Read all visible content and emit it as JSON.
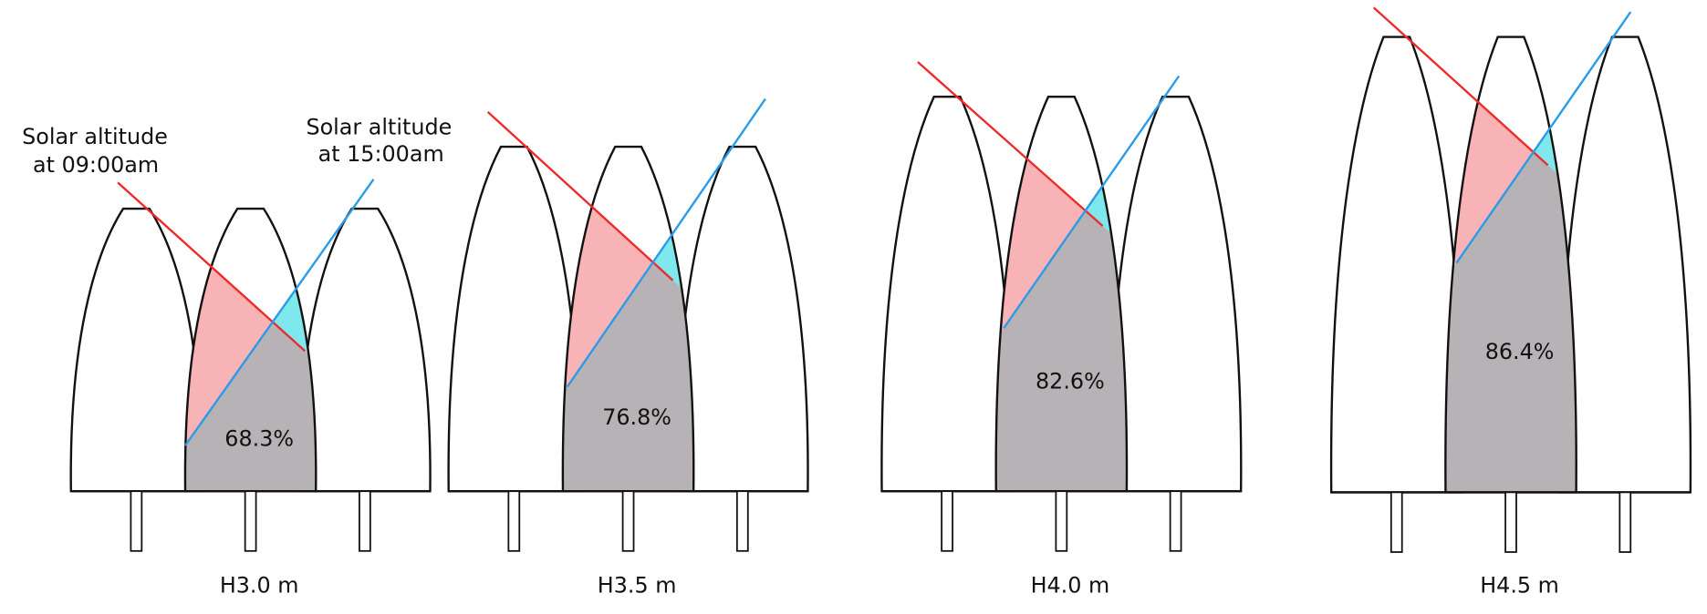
{
  "annotations": [
    [
      "Solar altitude",
      "at 09:00am"
    ],
    [
      "Solar altitude",
      "at 15:00am"
    ]
  ],
  "scenarios": [
    {
      "percentage": "68.3%",
      "label": "H3.0 m"
    },
    {
      "percentage": "76.8%",
      "label": "H3.5 m"
    },
    {
      "percentage": "82.6%",
      "label": "H4.0 m"
    },
    {
      "percentage": "86.4%",
      "label": "H4.5 m"
    }
  ]
}
